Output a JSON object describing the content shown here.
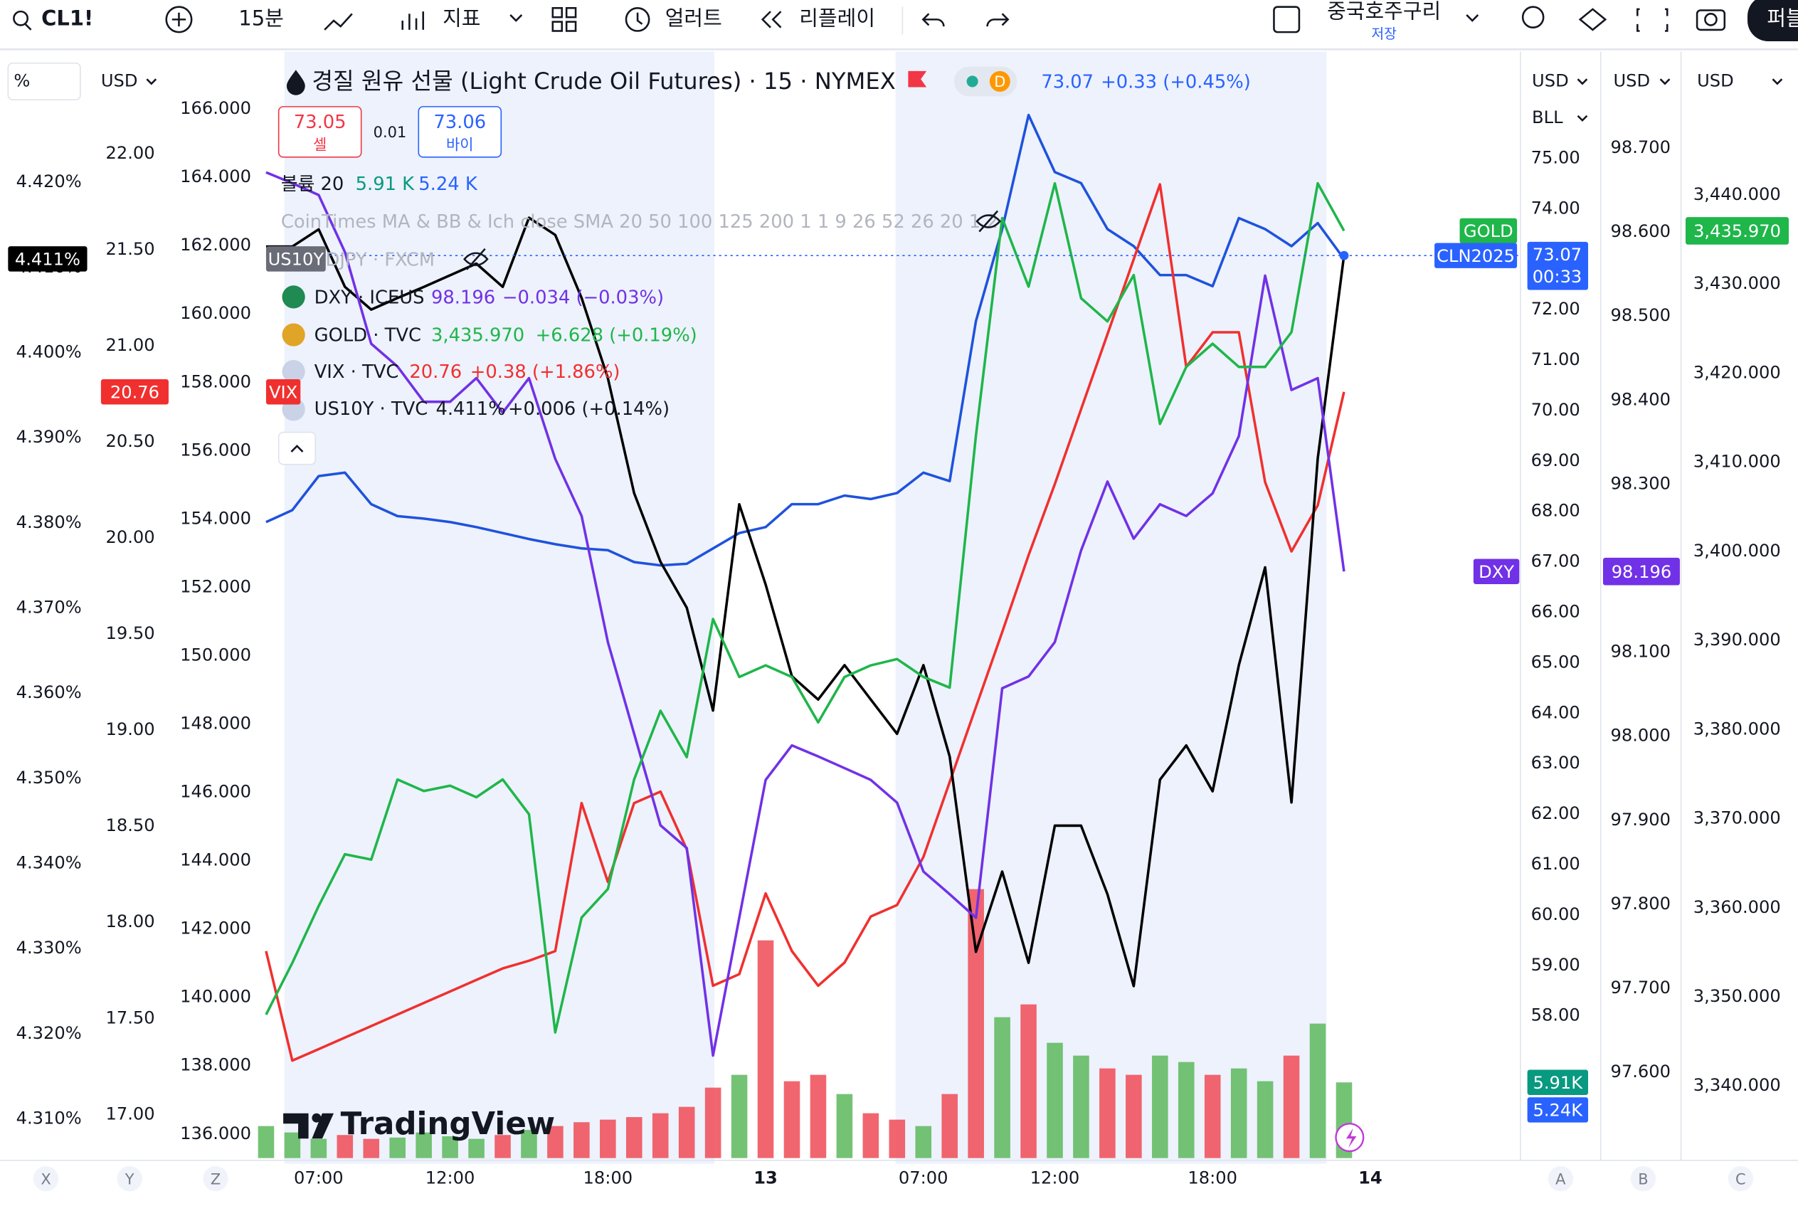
{
  "toolbar": {
    "symbol": "CL1!",
    "interval": "15분",
    "indicators": "지표",
    "alert": "얼러트",
    "replay": "리플레이",
    "layout": "중국호주구리",
    "save": "저장",
    "publish": "퍼블"
  },
  "axis_headers": [
    "%",
    "USD",
    "USD",
    "BLL",
    "USD",
    "USD"
  ],
  "legend": {
    "title": "경질 원유 선물 (Light Crude Oil Futures) · 15 · NYMEX",
    "badge": "D",
    "last": "73.07",
    "change": "+0.33 (+0.45%)",
    "sell_price": "73.05",
    "sell": "셀",
    "spread": "0.01",
    "buy_price": "73.06",
    "buy": "바이",
    "volume": "볼륨 20",
    "volume_a": "5.91 K",
    "volume_b": "5.24 K",
    "indicator": "CoinTimes MA & BB & Ich close SMA 20 50 100 125 200 1 1 9 26 52 26 20 1 2",
    "overlays": [
      {
        "name": "USDJPY · FXCM"
      },
      {
        "name": "DXY · ICEUS",
        "last": "98.196",
        "change": "−0.034 (−0.03%)"
      },
      {
        "name": "GOLD · TVC",
        "last": "3,435.970",
        "change": "+6.628 (+0.19%)"
      },
      {
        "name": "VIX · TVC",
        "last": "20.76",
        "change": "+0.38 (+1.86%)"
      },
      {
        "name": "US10Y · TVC",
        "last": "4.411%",
        "change": "+0.006 (+0.14%)"
      }
    ]
  },
  "watermark": "TradingView",
  "bottom_letters": [
    "X",
    "Y",
    "Z",
    "A",
    "B",
    "C"
  ],
  "chart_data": {
    "type": "line",
    "categories": [
      null,
      null,
      "07:00",
      null,
      null,
      null,
      null,
      "12:00",
      null,
      null,
      null,
      null,
      null,
      "18:00",
      null,
      null,
      null,
      null,
      null,
      "13",
      null,
      null,
      null,
      null,
      null,
      "07:00",
      null,
      null,
      null,
      null,
      "12:00",
      null,
      null,
      null,
      null,
      null,
      "18:00",
      null,
      null,
      null,
      null,
      null,
      "14"
    ],
    "axes": [
      {
        "ylim": [
          4.3054,
          4.434
        ],
        "yticks": [
          {
            "value": 4.42,
            "label": "4.420%"
          },
          {
            "value": 4.41,
            "label": "4.410%"
          },
          {
            "value": 4.4,
            "label": "4.400%"
          },
          {
            "value": 4.39,
            "label": "4.390%"
          },
          {
            "value": 4.38,
            "label": "4.380%"
          },
          {
            "value": 4.37,
            "label": "4.370%"
          },
          {
            "value": 4.36,
            "label": "4.360%"
          },
          {
            "value": 4.35,
            "label": "4.350%"
          },
          {
            "value": 4.34,
            "label": "4.340%"
          },
          {
            "value": 4.33,
            "label": "4.330%"
          },
          {
            "value": 4.32,
            "label": "4.320%"
          },
          {
            "value": 4.31,
            "label": "4.310%"
          }
        ]
      },
      {
        "ylim": [
          16.773,
          22.471
        ],
        "yticks": [
          {
            "value": 22,
            "label": "22.00"
          },
          {
            "value": 21.5,
            "label": "21.50"
          },
          {
            "value": 21,
            "label": "21.00"
          },
          {
            "value": 20.5,
            "label": "20.50"
          },
          {
            "value": 20,
            "label": "20.00"
          },
          {
            "value": 19.5,
            "label": "19.50"
          },
          {
            "value": 19,
            "label": "19.00"
          },
          {
            "value": 18.5,
            "label": "18.50"
          },
          {
            "value": 18,
            "label": "18.00"
          },
          {
            "value": 17.5,
            "label": "17.50"
          },
          {
            "value": 17,
            "label": "17.00"
          }
        ]
      },
      {
        "ylim": [
          135.295,
          167.342
        ],
        "yticks": [
          {
            "value": 166,
            "label": "166.000"
          },
          {
            "value": 164,
            "label": "164.000"
          },
          {
            "value": 162,
            "label": "162.000"
          },
          {
            "value": 160,
            "label": "160.000"
          },
          {
            "value": 158,
            "label": "158.000"
          },
          {
            "value": 156,
            "label": "156.000"
          },
          {
            "value": 154,
            "label": "154.000"
          },
          {
            "value": 152,
            "label": "152.000"
          },
          {
            "value": 150,
            "label": "150.000"
          },
          {
            "value": 148,
            "label": "148.000"
          },
          {
            "value": 146,
            "label": "146.000"
          },
          {
            "value": 144,
            "label": "144.000"
          },
          {
            "value": 142,
            "label": "142.000"
          },
          {
            "value": 140,
            "label": "140.000"
          },
          {
            "value": 138,
            "label": "138.000"
          },
          {
            "value": 136,
            "label": "136.000"
          }
        ]
      },
      {
        "ylim": [
          55.18,
          76.886
        ],
        "yticks": [
          {
            "value": 75,
            "label": "75.00"
          },
          {
            "value": 74,
            "label": "74.00"
          },
          {
            "value": 73,
            "label": "73.00"
          },
          {
            "value": 72,
            "label": "72.00"
          },
          {
            "value": 71,
            "label": "71.00"
          },
          {
            "value": 70,
            "label": "70.00"
          },
          {
            "value": 69,
            "label": "69.00"
          },
          {
            "value": 68,
            "label": "68.00"
          },
          {
            "value": 67,
            "label": "67.00"
          },
          {
            "value": 66,
            "label": "66.00"
          },
          {
            "value": 65,
            "label": "65.00"
          },
          {
            "value": 64,
            "label": "64.00"
          },
          {
            "value": 63,
            "label": "63.00"
          },
          {
            "value": 62,
            "label": "62.00"
          },
          {
            "value": 61,
            "label": "61.00"
          },
          {
            "value": 60,
            "label": "60.00"
          },
          {
            "value": 59,
            "label": "59.00"
          },
          {
            "value": 58,
            "label": "58.00"
          }
        ]
      },
      {
        "ylim": [
          97.498,
          98.801
        ],
        "yticks": [
          {
            "value": 98.7,
            "label": "98.700"
          },
          {
            "value": 98.6,
            "label": "98.600"
          },
          {
            "value": 98.5,
            "label": "98.500"
          },
          {
            "value": 98.4,
            "label": "98.400"
          },
          {
            "value": 98.3,
            "label": "98.300"
          },
          {
            "value": 98.2,
            "label": "98.200"
          },
          {
            "value": 98.1,
            "label": "98.100"
          },
          {
            "value": 98.0,
            "label": "98.000"
          },
          {
            "value": 97.9,
            "label": "97.900"
          },
          {
            "value": 97.8,
            "label": "97.800"
          },
          {
            "value": 97.7,
            "label": "97.700"
          },
          {
            "value": 97.6,
            "label": "97.600"
          }
        ]
      },
      {
        "ylim": [
          3331.9,
          3454.8
        ],
        "yticks": [
          {
            "value": 3440,
            "label": "3,440.000"
          },
          {
            "value": 3430,
            "label": "3,430.000"
          },
          {
            "value": 3420,
            "label": "3,420.000"
          },
          {
            "value": 3410,
            "label": "3,410.000"
          },
          {
            "value": 3400,
            "label": "3,400.000"
          },
          {
            "value": 3390,
            "label": "3,390.000"
          },
          {
            "value": 3380,
            "label": "3,380.000"
          },
          {
            "value": 3370,
            "label": "3,370.000"
          },
          {
            "value": 3360,
            "label": "3,360.000"
          },
          {
            "value": 3350,
            "label": "3,350.000"
          },
          {
            "value": 3340,
            "label": "3,340.000"
          }
        ]
      }
    ],
    "series": [
      {
        "name": "US10Y",
        "color": "#1f52dc",
        "axis": 0,
        "values": [
          4.3801,
          4.3815,
          4.3855,
          4.3859,
          4.3822,
          4.3808,
          4.3805,
          4.3801,
          4.3795,
          4.3788,
          4.3781,
          4.3775,
          4.377,
          4.3768,
          4.3754,
          4.375,
          4.3752,
          4.377,
          4.3788,
          4.3795,
          4.3822,
          4.3822,
          4.3832,
          4.3828,
          4.3835,
          4.3859,
          4.3849,
          4.4037,
          4.4145,
          4.4279,
          4.4212,
          4.4199,
          4.4145,
          4.4125,
          4.4091,
          4.4091,
          4.4078,
          4.4158,
          4.4145,
          4.4125,
          4.4152,
          4.411,
          null
        ]
      },
      {
        "name": "VIX",
        "color": "#f0302f",
        "axis": 1,
        "values": [
          17.85,
          17.28,
          17.34,
          17.4,
          17.46,
          17.52,
          17.58,
          17.64,
          17.7,
          17.76,
          17.8,
          17.85,
          18.62,
          18.21,
          18.62,
          18.68,
          18.38,
          17.67,
          17.73,
          18.15,
          17.85,
          17.67,
          17.79,
          18.03,
          18.09,
          18.34,
          18.73,
          19.12,
          19.51,
          19.91,
          20.28,
          20.67,
          21.06,
          21.45,
          21.84,
          20.89,
          21.07,
          21.07,
          20.29,
          19.93,
          20.17,
          20.76,
          null
        ]
      },
      {
        "name": "CLN2025",
        "countdown": "00:33",
        "color": "#000000",
        "axis": 3,
        "values": [
          73.25,
          73.25,
          73.59,
          72.45,
          72.0,
          72.23,
          72.45,
          72.68,
          72.91,
          72.45,
          73.82,
          73.48,
          72.23,
          70.64,
          68.36,
          67.0,
          66.09,
          64.05,
          68.14,
          66.55,
          64.73,
          64.27,
          64.95,
          64.27,
          63.59,
          64.95,
          63.14,
          59.27,
          60.86,
          59.05,
          61.77,
          61.77,
          60.41,
          58.59,
          62.68,
          63.36,
          62.45,
          64.95,
          66.89,
          62.23,
          69.05,
          73.07,
          null
        ]
      },
      {
        "name": "DXY",
        "color": "#7131e6",
        "axis": 4,
        "values": [
          98.671,
          98.658,
          98.644,
          98.576,
          98.467,
          98.44,
          98.398,
          98.398,
          98.426,
          98.385,
          98.426,
          98.33,
          98.262,
          98.112,
          98.003,
          97.894,
          97.867,
          97.62,
          97.784,
          97.948,
          97.989,
          97.976,
          97.962,
          97.948,
          97.921,
          97.839,
          97.812,
          97.784,
          98.057,
          98.071,
          98.112,
          98.221,
          98.303,
          98.235,
          98.276,
          98.262,
          98.289,
          98.357,
          98.548,
          98.412,
          98.426,
          98.196,
          null
        ]
      },
      {
        "name": "GOLD",
        "color": "#1fb64a",
        "axis": 5,
        "values": [
          3348.0,
          3353.8,
          3360.2,
          3366.0,
          3365.4,
          3374.4,
          3373.1,
          3373.7,
          3372.4,
          3374.4,
          3370.5,
          3346.0,
          3358.9,
          3362.1,
          3374.4,
          3382.1,
          3376.9,
          3392.4,
          3385.9,
          3387.2,
          3385.9,
          3380.8,
          3385.9,
          3387.2,
          3387.9,
          3385.9,
          3384.7,
          3413.0,
          3437.4,
          3429.7,
          3441.3,
          3428.4,
          3425.8,
          3431.0,
          3414.3,
          3420.7,
          3423.3,
          3420.7,
          3420.7,
          3424.6,
          3441.3,
          3435.97,
          null
        ]
      }
    ],
    "volume": {
      "ylim": [
        0,
        85.5
      ],
      "up_color": "#5cb85c",
      "down_color": "#ef4b55",
      "value_label": "5.91K",
      "ma_label": "5.24K",
      "values": [
        2.5,
        2.0,
        1.5,
        1.8,
        1.5,
        1.6,
        2.0,
        1.7,
        1.5,
        1.8,
        2.2,
        2.5,
        2.8,
        3.0,
        3.2,
        3.5,
        4.0,
        5.5,
        6.5,
        17.0,
        6.0,
        6.5,
        5.0,
        3.5,
        3.0,
        2.5,
        5.0,
        21.0,
        11.0,
        12.0,
        9.0,
        8.0,
        7.0,
        6.5,
        8.0,
        7.5,
        6.5,
        7.0,
        6.0,
        8.0,
        10.5,
        5.91,
        null
      ]
    }
  }
}
